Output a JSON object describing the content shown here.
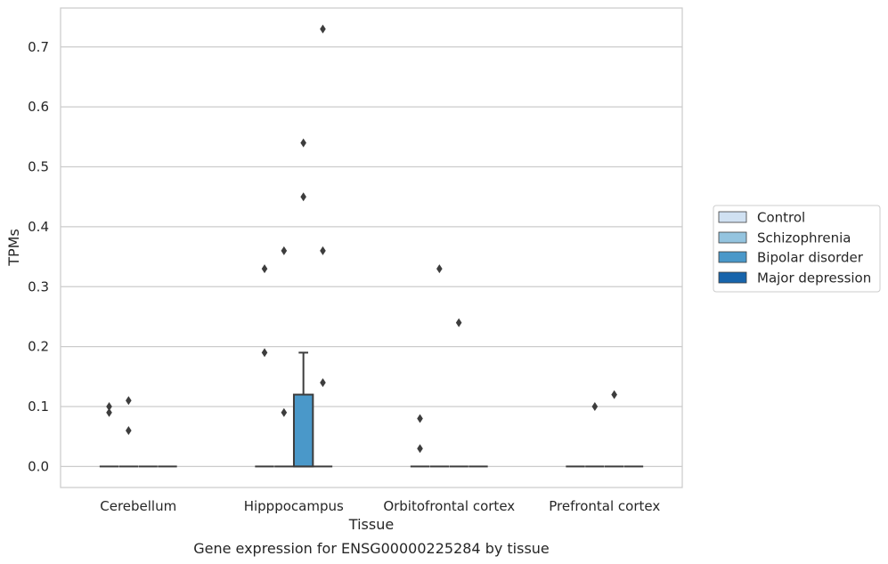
{
  "chart_data": {
    "type": "box",
    "title": "",
    "caption": "Gene expression for ENSG00000225284 by tissue",
    "xlabel": "Tissue",
    "ylabel": "TPMs",
    "ylim": [
      -0.035,
      0.765
    ],
    "yticks": [
      0.0,
      0.1,
      0.2,
      0.3,
      0.4,
      0.5,
      0.6,
      0.7
    ],
    "ytick_labels": [
      "0.0",
      "0.1",
      "0.2",
      "0.3",
      "0.4",
      "0.5",
      "0.6",
      "0.7"
    ],
    "grid": "horizontal",
    "legend_position": "right",
    "categories": [
      "Cerebellum",
      "Hipppocampus",
      "Orbitofrontal cortex",
      "Prefrontal cortex"
    ],
    "series": [
      {
        "name": "Control",
        "color": "#d0e1f2"
      },
      {
        "name": "Schizophrenia",
        "color": "#94c4df"
      },
      {
        "name": "Bipolar disorder",
        "color": "#4a98c9"
      },
      {
        "name": "Major depression",
        "color": "#1764ab"
      }
    ],
    "boxes": [
      {
        "category": 0,
        "series": 0,
        "q1": 0,
        "median": 0,
        "q3": 0,
        "whisker_low": 0,
        "whisker_high": 0,
        "outliers": [
          0.1,
          0.09
        ]
      },
      {
        "category": 0,
        "series": 1,
        "q1": 0,
        "median": 0,
        "q3": 0,
        "whisker_low": 0,
        "whisker_high": 0,
        "outliers": [
          0.11,
          0.06
        ]
      },
      {
        "category": 0,
        "series": 2,
        "q1": 0,
        "median": 0,
        "q3": 0,
        "whisker_low": 0,
        "whisker_high": 0,
        "outliers": []
      },
      {
        "category": 0,
        "series": 3,
        "q1": 0,
        "median": 0,
        "q3": 0,
        "whisker_low": 0,
        "whisker_high": 0,
        "outliers": []
      },
      {
        "category": 1,
        "series": 0,
        "q1": 0,
        "median": 0,
        "q3": 0,
        "whisker_low": 0,
        "whisker_high": 0,
        "outliers": [
          0.33,
          0.19
        ]
      },
      {
        "category": 1,
        "series": 1,
        "q1": 0,
        "median": 0,
        "q3": 0,
        "whisker_low": 0,
        "whisker_high": 0,
        "outliers": [
          0.36,
          0.09
        ]
      },
      {
        "category": 1,
        "series": 2,
        "q1": 0,
        "median": 0,
        "q3": 0.12,
        "whisker_low": 0,
        "whisker_high": 0.19,
        "outliers": [
          0.54,
          0.45
        ]
      },
      {
        "category": 1,
        "series": 3,
        "q1": 0,
        "median": 0,
        "q3": 0,
        "whisker_low": 0,
        "whisker_high": 0,
        "outliers": [
          0.73,
          0.36,
          0.14
        ]
      },
      {
        "category": 2,
        "series": 0,
        "q1": 0,
        "median": 0,
        "q3": 0,
        "whisker_low": 0,
        "whisker_high": 0,
        "outliers": [
          0.08,
          0.03
        ]
      },
      {
        "category": 2,
        "series": 1,
        "q1": 0,
        "median": 0,
        "q3": 0,
        "whisker_low": 0,
        "whisker_high": 0,
        "outliers": [
          0.33
        ]
      },
      {
        "category": 2,
        "series": 2,
        "q1": 0,
        "median": 0,
        "q3": 0,
        "whisker_low": 0,
        "whisker_high": 0,
        "outliers": [
          0.24
        ]
      },
      {
        "category": 2,
        "series": 3,
        "q1": 0,
        "median": 0,
        "q3": 0,
        "whisker_low": 0,
        "whisker_high": 0,
        "outliers": []
      },
      {
        "category": 3,
        "series": 0,
        "q1": 0,
        "median": 0,
        "q3": 0,
        "whisker_low": 0,
        "whisker_high": 0,
        "outliers": []
      },
      {
        "category": 3,
        "series": 1,
        "q1": 0,
        "median": 0,
        "q3": 0,
        "whisker_low": 0,
        "whisker_high": 0,
        "outliers": [
          0.1
        ]
      },
      {
        "category": 3,
        "series": 2,
        "q1": 0,
        "median": 0,
        "q3": 0,
        "whisker_low": 0,
        "whisker_high": 0,
        "outliers": [
          0.12
        ]
      },
      {
        "category": 3,
        "series": 3,
        "q1": 0,
        "median": 0,
        "q3": 0,
        "whisker_low": 0,
        "whisker_high": 0,
        "outliers": []
      }
    ]
  }
}
